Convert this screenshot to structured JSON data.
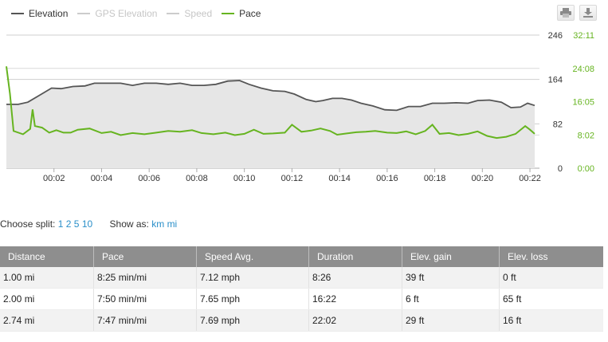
{
  "legend": [
    {
      "label": "Elevation",
      "color": "#555555",
      "active": true
    },
    {
      "label": "GPS Elevation",
      "color": "#cccccc",
      "active": false
    },
    {
      "label": "Speed",
      "color": "#cccccc",
      "active": false
    },
    {
      "label": "Pace",
      "color": "#66b420",
      "active": true
    }
  ],
  "toolbar": {
    "print_icon": "print-icon",
    "download_icon": "download-icon"
  },
  "chart_data": {
    "type": "line",
    "x_ticks": [
      "00:02",
      "00:04",
      "00:06",
      "00:08",
      "00:10",
      "00:12",
      "00:14",
      "00:16",
      "00:18",
      "00:20",
      "00:22"
    ],
    "elevation_ticks": [
      "246",
      "164",
      "82",
      "0"
    ],
    "pace_ticks": [
      "32:11",
      "24:08",
      "16:05",
      "8:02",
      "0:00"
    ],
    "elevation_range_ft": [
      0,
      246
    ],
    "pace_range_min": [
      0,
      32.18
    ],
    "x_range_min": [
      0,
      22.4
    ],
    "grid": true,
    "legend_position": "top-left",
    "series": [
      {
        "name": "Elevation",
        "color": "#555555",
        "fill": "#e6e6e6",
        "points": [
          [
            0,
            118
          ],
          [
            0.5,
            118
          ],
          [
            0.9,
            122
          ],
          [
            1.4,
            135
          ],
          [
            1.9,
            148
          ],
          [
            2.3,
            147
          ],
          [
            2.8,
            151
          ],
          [
            3.3,
            152
          ],
          [
            3.7,
            157
          ],
          [
            4.2,
            157
          ],
          [
            4.8,
            157
          ],
          [
            5.3,
            153
          ],
          [
            5.8,
            157
          ],
          [
            6.3,
            157
          ],
          [
            6.8,
            155
          ],
          [
            7.3,
            157
          ],
          [
            7.8,
            153
          ],
          [
            8.3,
            153
          ],
          [
            8.8,
            155
          ],
          [
            9.3,
            161
          ],
          [
            9.8,
            162
          ],
          [
            10.2,
            155
          ],
          [
            10.7,
            148
          ],
          [
            11.2,
            143
          ],
          [
            11.7,
            142
          ],
          [
            12.1,
            137
          ],
          [
            12.6,
            127
          ],
          [
            13,
            123
          ],
          [
            13.3,
            125
          ],
          [
            13.7,
            129
          ],
          [
            14.1,
            129
          ],
          [
            14.5,
            126
          ],
          [
            14.9,
            120
          ],
          [
            15.4,
            115
          ],
          [
            15.9,
            108
          ],
          [
            16.4,
            107
          ],
          [
            16.9,
            114
          ],
          [
            17.4,
            114
          ],
          [
            17.9,
            120
          ],
          [
            18.4,
            120
          ],
          [
            18.9,
            121
          ],
          [
            19.4,
            120
          ],
          [
            19.8,
            125
          ],
          [
            20.3,
            126
          ],
          [
            20.8,
            122
          ],
          [
            21.2,
            112
          ],
          [
            21.6,
            113
          ],
          [
            21.9,
            120
          ],
          [
            22.2,
            116
          ]
        ]
      },
      {
        "name": "Pace",
        "color": "#66b420",
        "points": [
          [
            0,
            24.6
          ],
          [
            0.15,
            18
          ],
          [
            0.3,
            9
          ],
          [
            0.7,
            8.2
          ],
          [
            1,
            9.5
          ],
          [
            1.1,
            14.2
          ],
          [
            1.2,
            10.2
          ],
          [
            1.5,
            9.8
          ],
          [
            1.8,
            8.6
          ],
          [
            2.1,
            9.2
          ],
          [
            2.4,
            8.6
          ],
          [
            2.7,
            8.6
          ],
          [
            3,
            9.3
          ],
          [
            3.5,
            9.6
          ],
          [
            4,
            8.5
          ],
          [
            4.4,
            8.8
          ],
          [
            4.8,
            8.0
          ],
          [
            5.3,
            8.5
          ],
          [
            5.8,
            8.2
          ],
          [
            6.3,
            8.6
          ],
          [
            6.8,
            9.0
          ],
          [
            7.3,
            8.8
          ],
          [
            7.8,
            9.2
          ],
          [
            8.2,
            8.5
          ],
          [
            8.7,
            8.2
          ],
          [
            9.2,
            8.6
          ],
          [
            9.6,
            8.0
          ],
          [
            10,
            8.3
          ],
          [
            10.4,
            9.3
          ],
          [
            10.8,
            8.3
          ],
          [
            11.2,
            8.4
          ],
          [
            11.7,
            8.6
          ],
          [
            12,
            10.5
          ],
          [
            12.4,
            8.8
          ],
          [
            12.8,
            9.1
          ],
          [
            13.2,
            9.6
          ],
          [
            13.6,
            9.0
          ],
          [
            13.9,
            8.1
          ],
          [
            14.3,
            8.4
          ],
          [
            14.7,
            8.7
          ],
          [
            15.1,
            8.8
          ],
          [
            15.5,
            9.0
          ],
          [
            16,
            8.6
          ],
          [
            16.4,
            8.5
          ],
          [
            16.8,
            8.9
          ],
          [
            17.2,
            8.2
          ],
          [
            17.6,
            9.0
          ],
          [
            17.9,
            10.5
          ],
          [
            18.2,
            8.3
          ],
          [
            18.6,
            8.5
          ],
          [
            19,
            8.0
          ],
          [
            19.4,
            8.3
          ],
          [
            19.8,
            8.9
          ],
          [
            20.2,
            7.8
          ],
          [
            20.6,
            7.3
          ],
          [
            21,
            7.6
          ],
          [
            21.4,
            8.3
          ],
          [
            21.8,
            10.2
          ],
          [
            22,
            9.3
          ],
          [
            22.2,
            8.3
          ]
        ]
      }
    ]
  },
  "split": {
    "label": "Choose split:",
    "options": [
      "1",
      "2",
      "5",
      "10"
    ],
    "show_label": "Show as:",
    "units": [
      "km",
      "mi"
    ]
  },
  "table": {
    "headers": [
      "Distance",
      "Pace",
      "Speed Avg.",
      "Duration",
      "Elev. gain",
      "Elev. loss"
    ],
    "rows": [
      [
        "1.00 mi",
        "8:25 min/mi",
        "7.12 mph",
        "8:26",
        "39 ft",
        "0 ft"
      ],
      [
        "2.00 mi",
        "7:50 min/mi",
        "7.65 mph",
        "16:22",
        "6 ft",
        "65 ft"
      ],
      [
        "2.74 mi",
        "7:47 min/mi",
        "7.69 mph",
        "22:02",
        "29 ft",
        "16 ft"
      ]
    ]
  }
}
